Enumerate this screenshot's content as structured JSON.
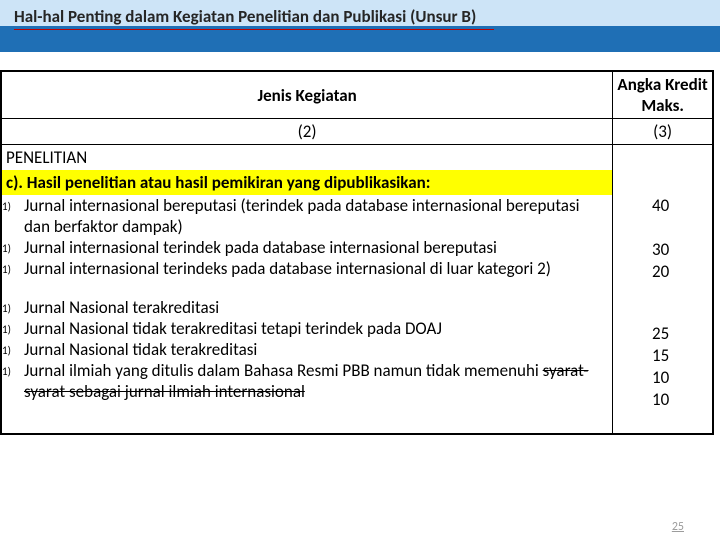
{
  "header": {
    "title": "Hal-hal Penting dalam Kegiatan Penelitian dan Publikasi (Unsur B)"
  },
  "table": {
    "col1": "Jenis Kegiatan",
    "col2": "Angka Kredit Maks.",
    "sub1": "(2)",
    "sub2": "(3)",
    "section": "PENELITIAN",
    "subsection": "c). Hasil penelitian atau hasil pemikiran yang dipublikasikan:",
    "rows": [
      {
        "n": "1)",
        "text": "Jurnal internasional bereputasi (terindek pada database internasional bereputasi dan berfaktor dampak)",
        "kredit": "40"
      },
      {
        "n": "1)",
        "text": "Jurnal internasional terindek pada database internasional bereputasi",
        "kredit": "30"
      },
      {
        "n": "1)",
        "text": "Jurnal internasional terindeks pada database internasional di luar kategori 2)",
        "kredit": "20"
      },
      {
        "n": "1)",
        "text": "Jurnal Nasional terakreditasi",
        "kredit": "25"
      },
      {
        "n": "1)",
        "text": "Jurnal Nasional tidak terakreditasi tetapi terindek pada DOAJ",
        "kredit": "15"
      },
      {
        "n": "1)",
        "text": "Jurnal Nasional tidak terakreditasi",
        "kredit": "10"
      },
      {
        "n": "1)",
        "text_pre": "Jurnal ilmiah yang ditulis dalam Bahasa Resmi PBB namun tidak memenuhi ",
        "text_strike": "syarat-syarat sebagai jurnal ilmiah internasional",
        "kredit": "10"
      }
    ]
  },
  "page_number": "25",
  "colors": {
    "header_top": "#cde4f7",
    "header_bottom": "#1f6fb5",
    "highlight": "#ffff00",
    "red_line": "#c00000"
  }
}
